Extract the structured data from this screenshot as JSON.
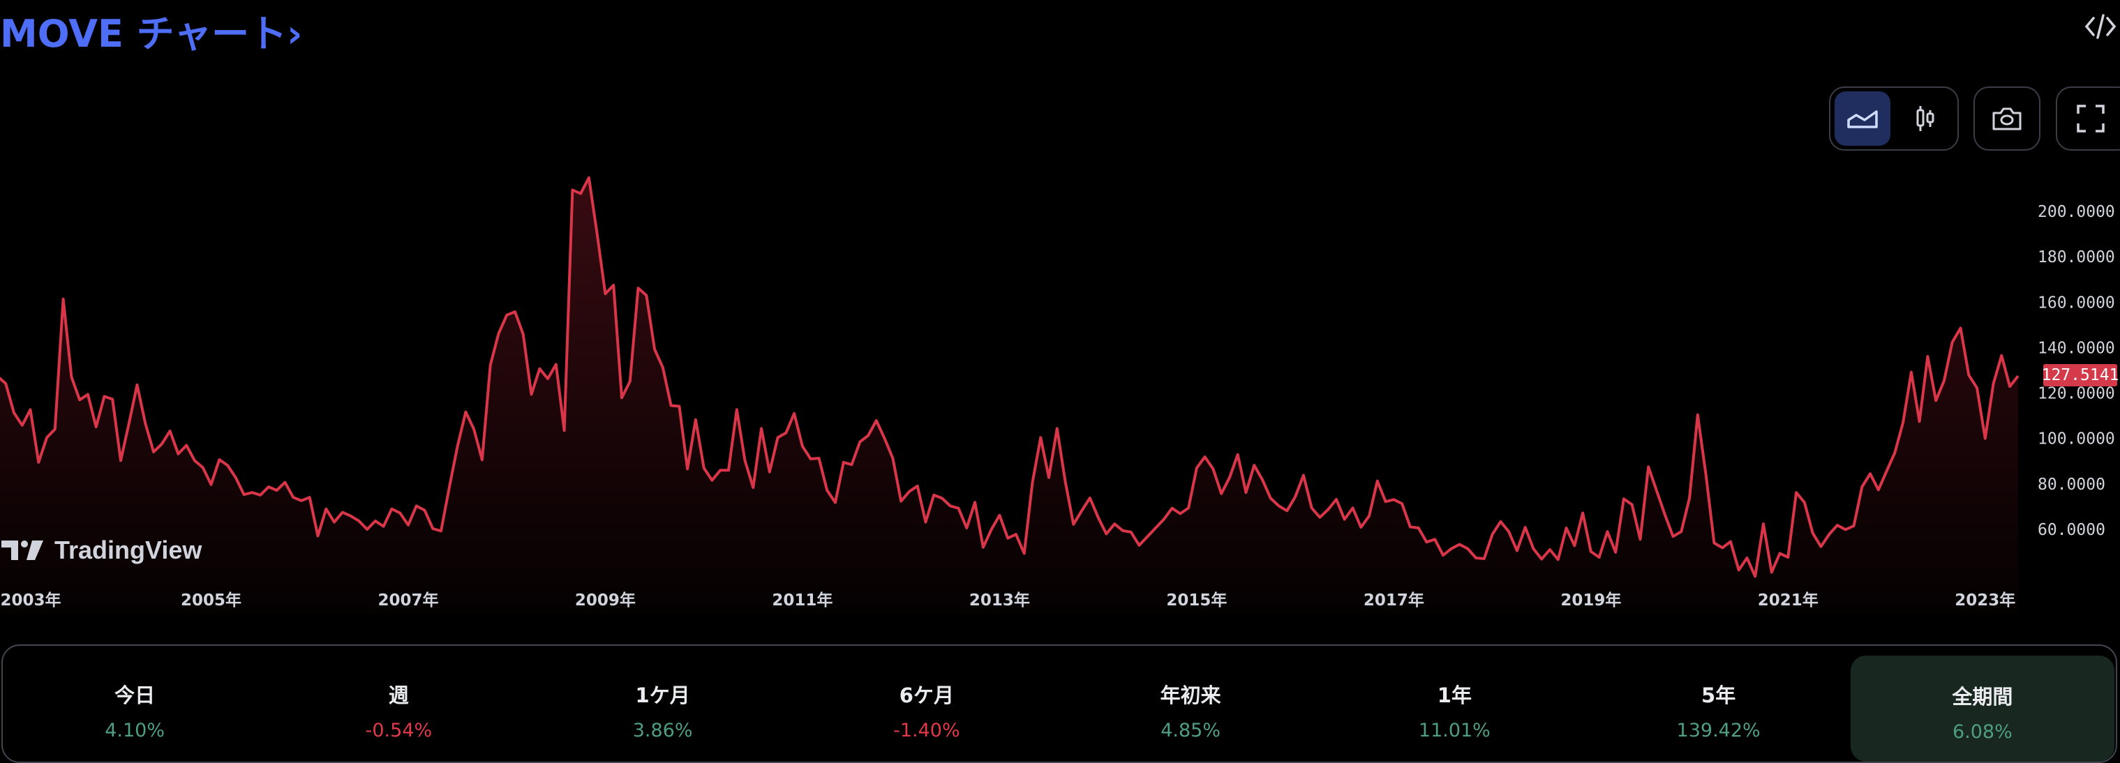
{
  "header": {
    "title": "MOVE チャート",
    "title_chevron": "›",
    "embed_icon": "code-embed-icon"
  },
  "toolbar": {
    "buttons": [
      {
        "name": "area-chart",
        "icon": "area-chart-icon",
        "active": true
      },
      {
        "name": "candlestick-chart",
        "icon": "candlestick-icon",
        "active": false
      },
      {
        "name": "snapshot",
        "icon": "camera-icon",
        "active": false
      },
      {
        "name": "fullscreen",
        "icon": "fullscreen-icon",
        "active": false
      }
    ]
  },
  "branding": {
    "logo_text": "TradingView"
  },
  "colors": {
    "title": "#4f6ef7",
    "line": "#d9364a",
    "price_tag": "#d43a4a",
    "positive": "#4f9e82",
    "negative": "#e03a4a",
    "active_tab": "#1f2e5e",
    "active_period": "#18271f"
  },
  "chart_data": {
    "type": "area",
    "title": "",
    "xlabel": "",
    "ylabel": "",
    "ylim": [
      40,
      215
    ],
    "y_ticks": [
      "200.0000",
      "180.0000",
      "160.0000",
      "140.0000",
      "120.0000",
      "100.0000",
      "80.0000",
      "60.0000"
    ],
    "x_ticks": [
      "2003年",
      "2005年",
      "2007年",
      "2009年",
      "2011年",
      "2013年",
      "2015年",
      "2017年",
      "2019年",
      "2021年",
      "2023年"
    ],
    "grid": false,
    "last_price": "127.5141",
    "dates": [
      "2002-11",
      "2002-12",
      "2003-01",
      "2003-02",
      "2003-03",
      "2003-04",
      "2003-05",
      "2003-06",
      "2003-07",
      "2003-08",
      "2003-09",
      "2003-10",
      "2003-11",
      "2003-12",
      "2004-01",
      "2004-02",
      "2004-03",
      "2004-04",
      "2004-05",
      "2004-06",
      "2004-07",
      "2004-08",
      "2004-09",
      "2004-10",
      "2004-11",
      "2004-12",
      "2005-01",
      "2005-02",
      "2005-03",
      "2005-04",
      "2005-05",
      "2005-06",
      "2005-07",
      "2005-08",
      "2005-09",
      "2005-10",
      "2005-11",
      "2005-12",
      "2006-01",
      "2006-02",
      "2006-03",
      "2006-04",
      "2006-05",
      "2006-06",
      "2006-07",
      "2006-08",
      "2006-09",
      "2006-10",
      "2006-11",
      "2006-12",
      "2007-01",
      "2007-02",
      "2007-03",
      "2007-04",
      "2007-05",
      "2007-06",
      "2007-07",
      "2007-08",
      "2007-09",
      "2007-10",
      "2007-11",
      "2007-12",
      "2008-01",
      "2008-02",
      "2008-03",
      "2008-04",
      "2008-05",
      "2008-06",
      "2008-07",
      "2008-08",
      "2008-09",
      "2008-10",
      "2008-11",
      "2008-12",
      "2009-01",
      "2009-02",
      "2009-03",
      "2009-04",
      "2009-05",
      "2009-06",
      "2009-07",
      "2009-08",
      "2009-09",
      "2009-10",
      "2009-11",
      "2009-12",
      "2010-01",
      "2010-02",
      "2010-03",
      "2010-04",
      "2010-05",
      "2010-06",
      "2010-07",
      "2010-08",
      "2010-09",
      "2010-10",
      "2010-11",
      "2010-12",
      "2011-01",
      "2011-02",
      "2011-03",
      "2011-04",
      "2011-05",
      "2011-06",
      "2011-07",
      "2011-08",
      "2011-09",
      "2011-10",
      "2011-11",
      "2011-12",
      "2012-01",
      "2012-02",
      "2012-03",
      "2012-04",
      "2012-05",
      "2012-06",
      "2012-07",
      "2012-08",
      "2012-09",
      "2012-10",
      "2012-11",
      "2012-12",
      "2013-01",
      "2013-02",
      "2013-03",
      "2013-04",
      "2013-05",
      "2013-06",
      "2013-07",
      "2013-08",
      "2013-09",
      "2013-10",
      "2013-11",
      "2013-12",
      "2014-01",
      "2014-02",
      "2014-03",
      "2014-04",
      "2014-05",
      "2014-06",
      "2014-07",
      "2014-08",
      "2014-09",
      "2014-10",
      "2014-11",
      "2014-12",
      "2015-01",
      "2015-02",
      "2015-03",
      "2015-04",
      "2015-05",
      "2015-06",
      "2015-07",
      "2015-08",
      "2015-09",
      "2015-10",
      "2015-11",
      "2015-12",
      "2016-01",
      "2016-02",
      "2016-03",
      "2016-04",
      "2016-05",
      "2016-06",
      "2016-07",
      "2016-08",
      "2016-09",
      "2016-10",
      "2016-11",
      "2016-12",
      "2017-01",
      "2017-02",
      "2017-03",
      "2017-04",
      "2017-05",
      "2017-06",
      "2017-07",
      "2017-08",
      "2017-09",
      "2017-10",
      "2017-11",
      "2017-12",
      "2018-01",
      "2018-02",
      "2018-03",
      "2018-04",
      "2018-05",
      "2018-06",
      "2018-07",
      "2018-08",
      "2018-09",
      "2018-10",
      "2018-11",
      "2018-12",
      "2019-01",
      "2019-02",
      "2019-03",
      "2019-04",
      "2019-05",
      "2019-06",
      "2019-07",
      "2019-08",
      "2019-09",
      "2019-10",
      "2019-11",
      "2019-12",
      "2020-01",
      "2020-02",
      "2020-03",
      "2020-04",
      "2020-05",
      "2020-06",
      "2020-07",
      "2020-08",
      "2020-09",
      "2020-10",
      "2020-11",
      "2020-12",
      "2021-01",
      "2021-02",
      "2021-03",
      "2021-04",
      "2021-05",
      "2021-06",
      "2021-07",
      "2021-08",
      "2021-09",
      "2021-10",
      "2021-11",
      "2021-12",
      "2022-01",
      "2022-02",
      "2022-03",
      "2022-04",
      "2022-05",
      "2022-06",
      "2022-07",
      "2022-08",
      "2022-09",
      "2022-10",
      "2022-11",
      "2022-12",
      "2023-01",
      "2023-02",
      "2023-03",
      "2023-04",
      "2023-05"
    ],
    "values": [
      127.3,
      124.2,
      111.3,
      105.8,
      112.7,
      89.5,
      100.4,
      104.1,
      161.4,
      127.1,
      117.0,
      119.4,
      105.1,
      118.5,
      117.3,
      90.3,
      106.6,
      123.6,
      106.6,
      94.1,
      97.6,
      103.3,
      93.2,
      97.0,
      90.3,
      87.2,
      79.7,
      90.7,
      88.2,
      82.8,
      75.3,
      76.2,
      75.1,
      78.7,
      77.2,
      80.7,
      74.1,
      72.6,
      74.1,
      57.1,
      69.0,
      63.2,
      67.5,
      65.9,
      63.7,
      60.0,
      63.7,
      61.3,
      69.0,
      67.2,
      61.9,
      70.3,
      68.4,
      60.3,
      59.3,
      78.4,
      96.6,
      111.7,
      104.1,
      90.6,
      132.3,
      146.1,
      154.3,
      155.8,
      145.9,
      119.4,
      130.7,
      126.3,
      132.6,
      103.5,
      209.4,
      207.8,
      214.8,
      190.0,
      163.7,
      167.5,
      117.9,
      125.1,
      166.2,
      163.0,
      139.2,
      131.3,
      114.5,
      114.2,
      86.6,
      108.3,
      87.0,
      81.6,
      86.0,
      86.0,
      112.7,
      90.3,
      78.4,
      104.4,
      85.3,
      100.4,
      102.5,
      111.0,
      96.6,
      91.0,
      91.3,
      77.2,
      71.8,
      89.5,
      88.5,
      98.5,
      101.3,
      107.9,
      100.0,
      91.3,
      72.4,
      76.6,
      79.1,
      63.2,
      75.1,
      73.7,
      70.3,
      69.3,
      60.6,
      71.9,
      52.1,
      59.9,
      66.2,
      56.1,
      57.8,
      49.4,
      80.6,
      100.4,
      82.8,
      104.4,
      81.0,
      62.2,
      68.2,
      73.8,
      65.3,
      58.0,
      62.4,
      59.4,
      58.8,
      53.0,
      56.8,
      60.6,
      64.4,
      69.3,
      66.9,
      69.4,
      87.0,
      91.9,
      86.6,
      75.7,
      82.8,
      92.9,
      76.2,
      88.2,
      81.9,
      73.7,
      70.3,
      68.2,
      74.3,
      83.8,
      69.4,
      65.3,
      68.7,
      73.2,
      64.4,
      69.4,
      60.9,
      65.9,
      81.3,
      72.2,
      73.1,
      71.3,
      61.1,
      60.6,
      54.4,
      55.6,
      48.6,
      51.5,
      53.4,
      51.5,
      47.4,
      47.1,
      57.8,
      63.4,
      59.0,
      50.6,
      60.9,
      51.5,
      46.9,
      51.1,
      46.7,
      60.6,
      52.8,
      67.2,
      50.2,
      47.7,
      59.0,
      49.9,
      73.4,
      70.9,
      55.6,
      87.5,
      77.0,
      66.5,
      56.9,
      59.0,
      73.8,
      110.4,
      84.1,
      54.0,
      51.9,
      54.6,
      42.1,
      47.4,
      39.3,
      62.4,
      41.1,
      49.4,
      47.7,
      76.2,
      71.8,
      58.4,
      52.4,
      57.8,
      61.8,
      59.9,
      61.5,
      78.7,
      84.5,
      77.4,
      85.7,
      93.7,
      107.0,
      129.2,
      107.5,
      136.1,
      116.7,
      125.4,
      142.4,
      148.6,
      127.9,
      122.3,
      100.0,
      124.2,
      136.5,
      122.9,
      127.51
    ]
  },
  "performance": [
    {
      "label": "今日",
      "value": "4.10%",
      "direction": "up",
      "active": false
    },
    {
      "label": "週",
      "value": "-0.54%",
      "direction": "down",
      "active": false
    },
    {
      "label": "1ケ月",
      "value": "3.86%",
      "direction": "up",
      "active": false
    },
    {
      "label": "6ケ月",
      "value": "-1.40%",
      "direction": "down",
      "active": false
    },
    {
      "label": "年初来",
      "value": "4.85%",
      "direction": "up",
      "active": false
    },
    {
      "label": "1年",
      "value": "11.01%",
      "direction": "up",
      "active": false
    },
    {
      "label": "5年",
      "value": "139.42%",
      "direction": "up",
      "active": false
    },
    {
      "label": "全期間",
      "value": "6.08%",
      "direction": "up",
      "active": true
    }
  ]
}
